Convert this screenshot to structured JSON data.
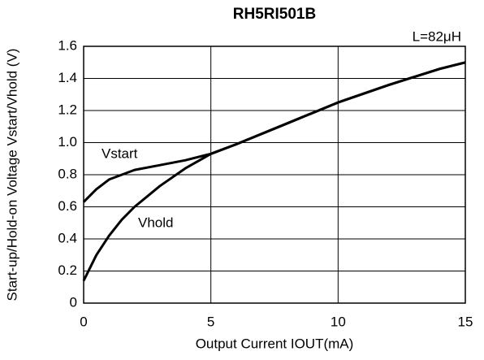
{
  "chart_data": {
    "type": "line",
    "title": "RH5RI501B",
    "annotation": "L=82μH",
    "xlabel": "Output Current IOUT(mA)",
    "ylabel": "Start-up/Hold-on Voltage Vstart/Vhold (V)",
    "x": [
      0,
      0.5,
      1,
      1.5,
      2,
      3,
      4,
      5,
      6,
      8,
      10,
      12,
      14,
      15
    ],
    "series": [
      {
        "name": "Vstart",
        "color": "#000000",
        "values": [
          0.63,
          0.71,
          0.77,
          0.8,
          0.83,
          0.86,
          0.89,
          0.93,
          0.99,
          1.12,
          1.25,
          1.36,
          1.46,
          1.5
        ]
      },
      {
        "name": "Vhold",
        "color": "#000000",
        "values": [
          0.14,
          0.3,
          0.42,
          0.52,
          0.6,
          0.73,
          0.84,
          0.93,
          0.99,
          1.12,
          1.25,
          1.36,
          1.46,
          1.5
        ]
      }
    ],
    "xlim": [
      0,
      15
    ],
    "xticks": [
      0,
      5,
      10,
      15
    ],
    "ylim": [
      0,
      1.6
    ],
    "yticks": [
      0,
      0.2,
      0.4,
      0.6,
      0.8,
      {
        "value": 1,
        "label": "1.0"
      },
      1.2,
      1.4,
      1.6
    ],
    "grid": true
  }
}
